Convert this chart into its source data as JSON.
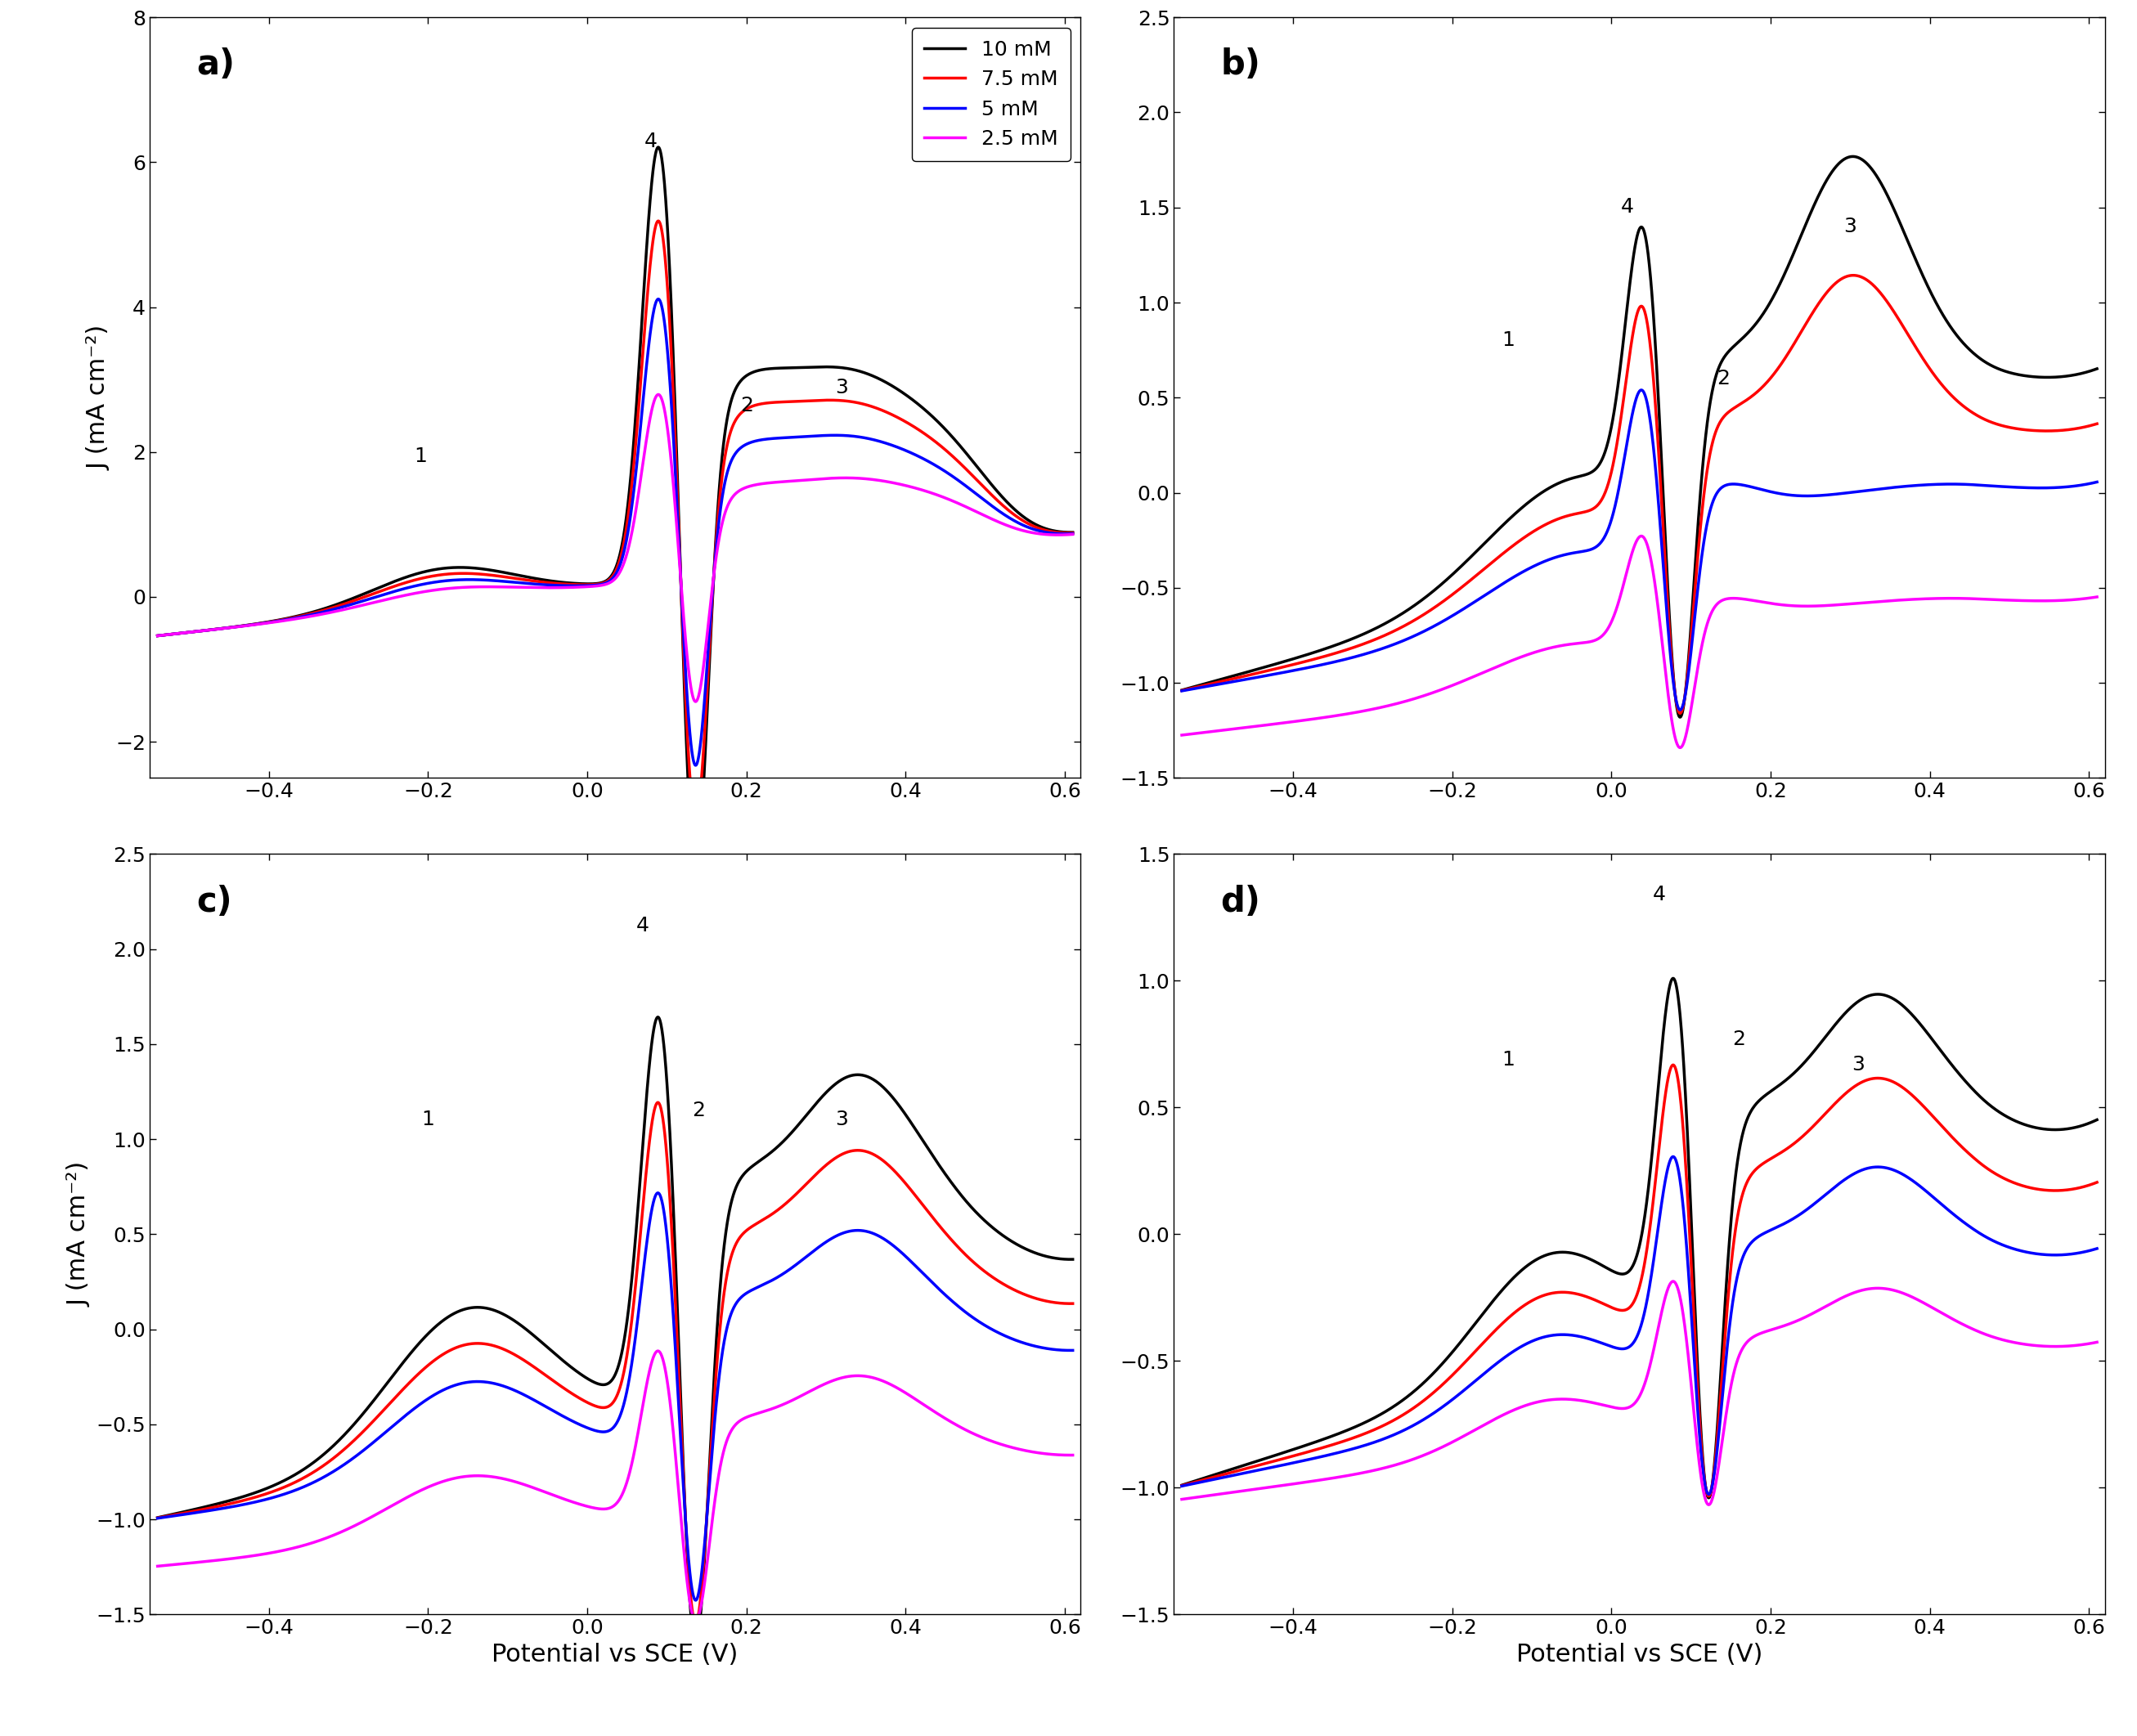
{
  "colors": [
    "#000000",
    "#ff0000",
    "#0000ff",
    "#ff00ff"
  ],
  "legend_labels": [
    "10 mM",
    "7.5 mM",
    "5 mM",
    "2.5 mM"
  ],
  "panel_labels": [
    "a)",
    "b)",
    "c)",
    "d)"
  ],
  "xlabel": "Potential vs SCE (V)",
  "ylabel": "J (mA cm⁻²)",
  "xlim": [
    -0.55,
    0.62
  ],
  "panels": {
    "a": {
      "ylim": [
        -2.5,
        8.0
      ],
      "yticks": [
        -2,
        0,
        2,
        4,
        6,
        8
      ]
    },
    "b": {
      "ylim": [
        -1.5,
        2.5
      ],
      "yticks": [
        -1.5,
        -1.0,
        -0.5,
        0.0,
        0.5,
        1.0,
        1.5,
        2.0,
        2.5
      ]
    },
    "c": {
      "ylim": [
        -1.5,
        2.5
      ],
      "yticks": [
        -1.5,
        -1.0,
        -0.5,
        0.0,
        0.5,
        1.0,
        1.5,
        2.0,
        2.5
      ]
    },
    "d": {
      "ylim": [
        -1.5,
        1.5
      ],
      "yticks": [
        -1.5,
        -1.0,
        -0.5,
        0.0,
        0.5,
        1.0,
        1.5
      ]
    }
  },
  "linewidth": 2.5,
  "annotation_fontsize": 18,
  "label_fontsize": 22,
  "tick_fontsize": 18,
  "legend_fontsize": 18,
  "panel_label_fontsize": 30
}
